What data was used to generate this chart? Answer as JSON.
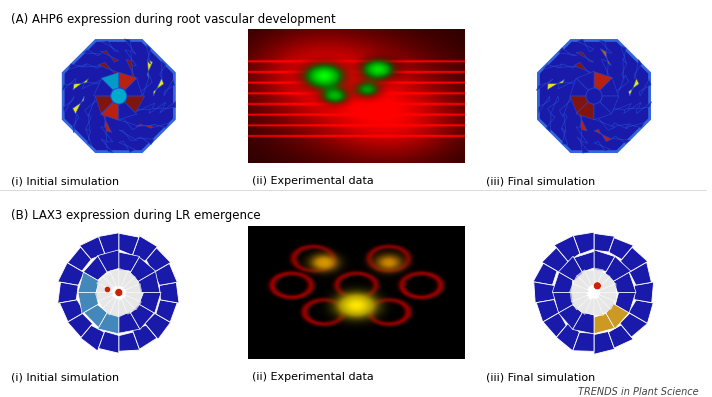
{
  "title_A": "(A) AHP6 expression during root vascular development",
  "title_B": "(B) LAX3 expression during LR emergence",
  "caption_A_i": "(i) Initial simulation",
  "caption_A_ii": "(ii) Experimental data",
  "caption_A_iii": "(iii) Final simulation",
  "caption_B_i": "(i) Initial simulation",
  "caption_B_ii": "(ii) Experimental data",
  "caption_B_iii": "(iii) Final simulation",
  "watermark": "TRENDS in Plant Science",
  "bg_color": "#ffffff",
  "panel_bg_dark": "#000000",
  "cell_blue": "#1a1aaa",
  "cell_dark_blue": "#000066",
  "cell_yellow": "#ffff00",
  "cell_red": "#cc2200",
  "cell_cyan": "#00aacc",
  "cell_orange": "#cc6600",
  "cell_green": "#22aa22",
  "cell_light_blue": "#5599cc",
  "cell_gold": "#cc9922",
  "caption_fontsize": 8,
  "title_fontsize": 8.5,
  "watermark_fontsize": 7
}
